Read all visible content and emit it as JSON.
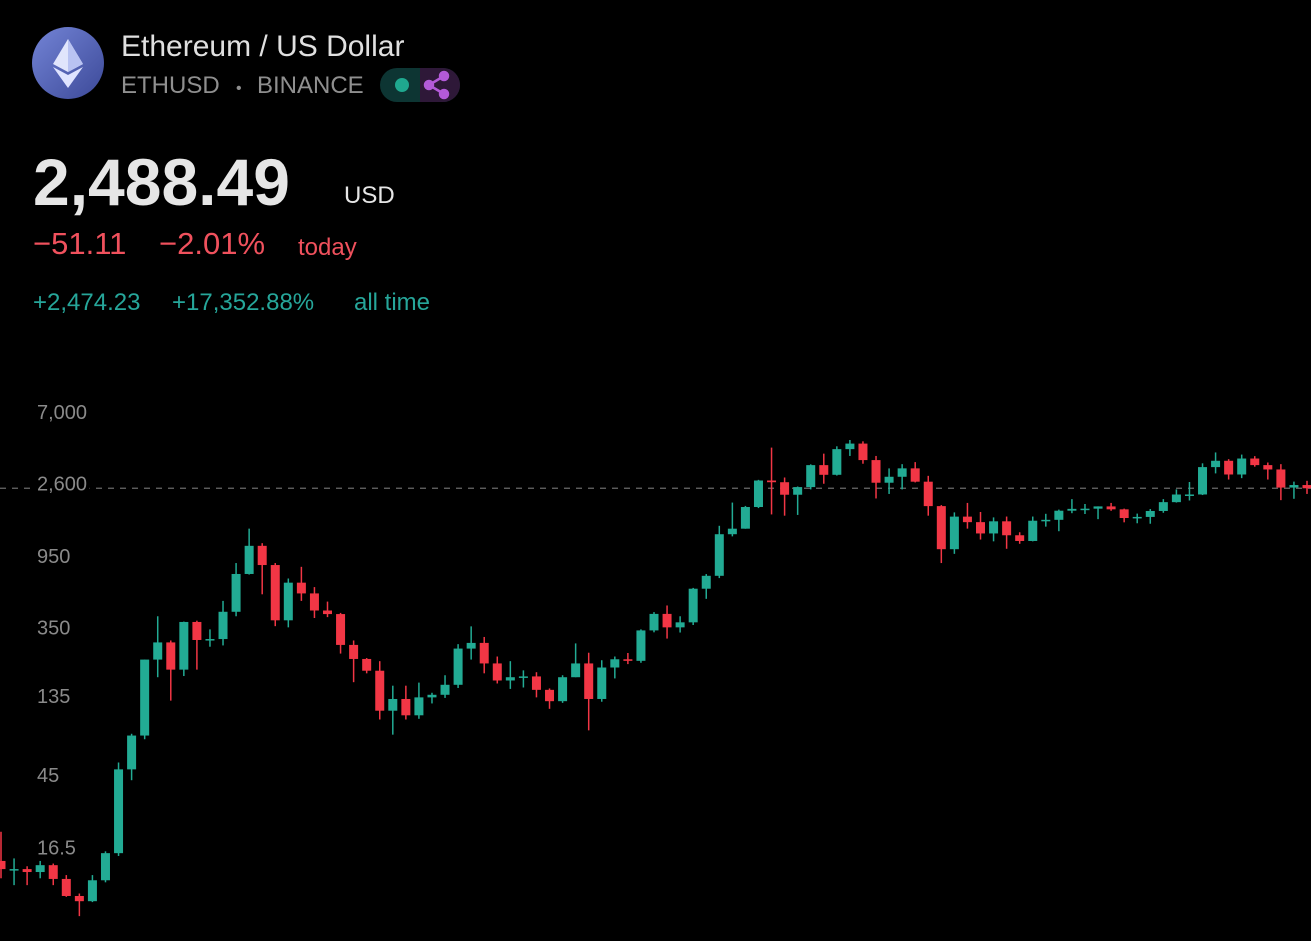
{
  "header": {
    "title": "Ethereum / US Dollar",
    "symbol": "ETHUSD",
    "separator": "•",
    "exchange": "BINANCE",
    "price": "2,488.49",
    "currency": "USD",
    "change_today": "−51.11",
    "change_today_pct": "−2.01%",
    "today_label": "today",
    "change_all_time": "+2,474.23",
    "change_all_time_pct": "+17,352.88%",
    "all_time_label": "all time"
  },
  "chart_data": {
    "type": "candlestick",
    "log_scale": true,
    "up_color": "#22ab94",
    "down_color": "#f23645",
    "last_price": 2488.49,
    "ylim": [
      4.6,
      9100
    ],
    "yticks": [
      {
        "value": 7000,
        "label": "7,000"
      },
      {
        "value": 2600,
        "label": "2,600"
      },
      950,
      350,
      135,
      45,
      16.5
    ],
    "open": [
      14,
      12.5,
      12.5,
      12,
      13.2,
      10.9,
      8.6,
      8.0,
      10.7,
      15.6,
      50,
      80,
      230,
      292,
      200,
      388,
      302,
      306,
      447,
      756,
      1118,
      856,
      397,
      670,
      577,
      455,
      433,
      282,
      232,
      197,
      113,
      133,
      106,
      136,
      141,
      162,
      268,
      290,
      218,
      172,
      180,
      182,
      151,
      129,
      180,
      218,
      133,
      206,
      231,
      226,
      345,
      434,
      360,
      386,
      616,
      737,
      1314,
      1419,
      1918,
      2772,
      2707,
      2275,
      2530,
      3433,
      3001,
      4288,
      4631,
      3682,
      2688,
      2920,
      3282,
      2727,
      1942,
      1067,
      1678,
      1554,
      1328,
      1572,
      1295,
      1196,
      1585,
      1605,
      1822,
      1869,
      1874,
      1934,
      1857,
      1646,
      1671,
      1815,
      2052,
      2282,
      2283,
      3340,
      3647,
      3014,
      3763,
      3434,
      3232,
      2513,
      2603
    ],
    "high": [
      21,
      14.5,
      13,
      14,
      13.5,
      11.5,
      8.9,
      11.5,
      16,
      55,
      82,
      230,
      420,
      300,
      390,
      395,
      350,
      520,
      880,
      1420,
      1160,
      880,
      710,
      835,
      630,
      515,
      440,
      300,
      235,
      225,
      160,
      160,
      167,
      145,
      185,
      285,
      365,
      315,
      240,
      225,
      198,
      193,
      154,
      185,
      288,
      253,
      228,
      240,
      252,
      350,
      445,
      488,
      420,
      623,
      755,
      1477,
      2040,
      1947,
      2798,
      4380,
      2891,
      2551,
      3470,
      4027,
      4460,
      4868,
      4778,
      3900,
      3280,
      3480,
      3580,
      2958,
      1970,
      1780,
      2030,
      1790,
      1660,
      1680,
      1350,
      1680,
      1745,
      1850,
      2140,
      2000,
      1935,
      2030,
      1875,
      1750,
      1865,
      2140,
      2450,
      2715,
      3520,
      4095,
      3730,
      3975,
      3890,
      3560,
      3480,
      2730,
      2760
    ],
    "low": [
      11,
      10,
      10,
      11,
      10,
      8.5,
      6.5,
      7.9,
      10.4,
      15,
      43,
      76,
      180,
      130,
      183,
      200,
      275,
      280,
      420,
      750,
      570,
      366,
      360,
      520,
      410,
      415,
      250,
      168,
      190,
      100,
      81,
      100,
      101,
      125,
      135,
      155,
      230,
      190,
      165,
      153,
      156,
      136,
      116,
      126,
      180,
      86,
      128,
      177,
      216,
      220,
      336,
      308,
      335,
      372,
      535,
      714,
      1275,
      1418,
      1890,
      1730,
      1700,
      1718,
      2450,
      2650,
      2970,
      3900,
      3500,
      2160,
      2300,
      2450,
      2700,
      1700,
      880,
      1000,
      1420,
      1220,
      1190,
      1073,
      1150,
      1190,
      1460,
      1370,
      1760,
      1740,
      1620,
      1820,
      1550,
      1530,
      1520,
      1770,
      2040,
      2100,
      2265,
      3060,
      2810,
      2865,
      3360,
      2810,
      2110,
      2150,
      2300
    ],
    "close": [
      12.5,
      12.5,
      12,
      13.2,
      10.9,
      8.6,
      8.0,
      10.7,
      15.6,
      50,
      80,
      230,
      292,
      200,
      388,
      302,
      306,
      447,
      756,
      1118,
      856,
      397,
      670,
      577,
      455,
      433,
      282,
      232,
      197,
      113,
      133,
      106,
      136,
      141,
      162,
      268,
      290,
      218,
      172,
      180,
      182,
      151,
      129,
      180,
      218,
      133,
      206,
      231,
      226,
      345,
      434,
      360,
      386,
      616,
      737,
      1314,
      1419,
      1918,
      2772,
      2707,
      2275,
      2530,
      3433,
      3001,
      4288,
      4631,
      3682,
      2688,
      2920,
      3282,
      2727,
      1942,
      1067,
      1678,
      1554,
      1328,
      1572,
      1295,
      1196,
      1585,
      1605,
      1822,
      1869,
      1874,
      1934,
      1857,
      1646,
      1671,
      1815,
      2052,
      2282,
      2283,
      3340,
      3647,
      3014,
      3763,
      3434,
      3232,
      2513,
      2603,
      2488.49
    ]
  }
}
